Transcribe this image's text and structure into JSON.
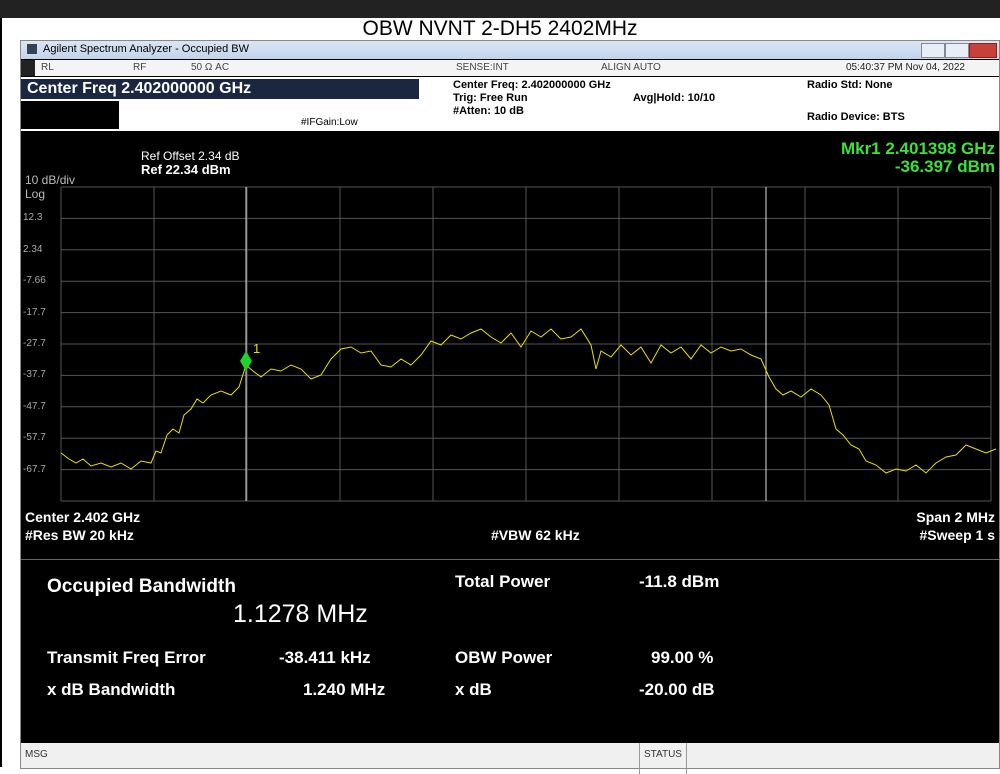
{
  "page_title": "OBW NVNT 2-DH5 2402MHz",
  "window": {
    "title": "Agilent Spectrum Analyzer - Occupied BW"
  },
  "status_row": {
    "rl": "RL",
    "rf": "RF",
    "impedance": "50 Ω  AC",
    "sense": "SENSE:INT",
    "align": "ALIGN AUTO",
    "datetime": "05:40:37 PM Nov 04, 2022"
  },
  "settings": {
    "center_freq_big": "Center Freq 2.402000000 GHz",
    "if_gain": "#IFGain:Low",
    "center_freq": "Center Freq: 2.402000000 GHz",
    "trig": "Trig: Free Run",
    "atten": "#Atten: 10 dB",
    "avg_hold": "Avg|Hold: 10/10",
    "radio_std": "Radio Std: None",
    "radio_device": "Radio Device: BTS"
  },
  "plot": {
    "ref_offset": "Ref Offset 2.34 dB",
    "scale": "10 dB/div",
    "ref_level": "Ref 22.34 dBm",
    "log": "Log",
    "marker_freq": "Mkr1  2.401398 GHz",
    "marker_level": "-36.397 dBm",
    "marker_id": "1",
    "y_labels": [
      "12.3",
      "2.34",
      "-7.66",
      "-17.7",
      "-27.7",
      "-37.7",
      "-47.7",
      "-57.7",
      "-67.7"
    ],
    "center": "Center  2.402 GHz",
    "res_bw": "#Res BW  20 kHz",
    "vbw": "#VBW  62 kHz",
    "span": "Span 2 MHz",
    "sweep": "#Sweep  1 s"
  },
  "results": {
    "obw_label": "Occupied Bandwidth",
    "obw_value": "1.1278 MHz",
    "total_power_label": "Total Power",
    "total_power_value": "-11.8 dBm",
    "tfe_label": "Transmit Freq Error",
    "tfe_value": "-38.411 kHz",
    "obw_power_label": "OBW Power",
    "obw_power_value": "99.00 %",
    "xdb_bw_label": "x dB Bandwidth",
    "xdb_bw_value": "1.240 MHz",
    "xdb_label": "x dB",
    "xdb_value": "-20.00 dB"
  },
  "status_bar": {
    "msg": "MSG",
    "status": "STATUS"
  }
}
